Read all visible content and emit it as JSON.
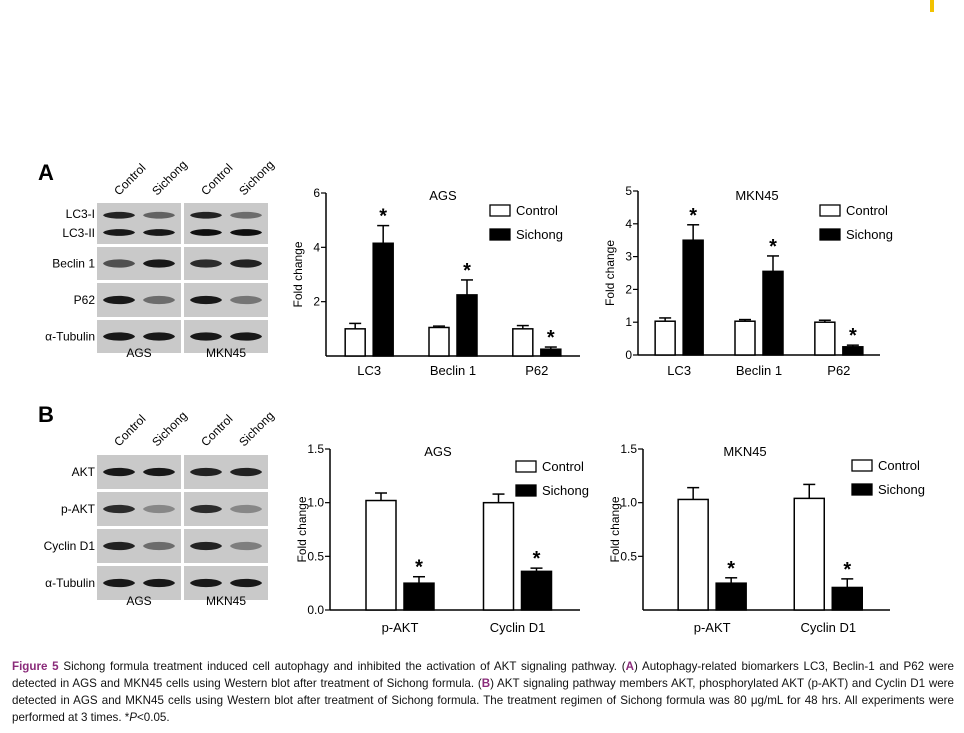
{
  "panel_a_letter": "A",
  "panel_b_letter": "B",
  "blots": {
    "A": {
      "lanes": [
        "Control",
        "Sichong",
        "Control",
        "Sichong"
      ],
      "rows": [
        {
          "label": "LC3-I",
          "label2": "LC3-II"
        },
        {
          "label": "Beclin 1"
        },
        {
          "label": "P62"
        },
        {
          "label": "α-Tubulin"
        }
      ],
      "cells": [
        "AGS",
        "MKN45"
      ]
    },
    "B": {
      "lanes": [
        "Control",
        "Sichong",
        "Control",
        "Sichong"
      ],
      "rows": [
        {
          "label": "AKT"
        },
        {
          "label": "p-AKT"
        },
        {
          "label": "Cyclin D1"
        },
        {
          "label": "α-Tubulin"
        }
      ],
      "cells": [
        "AGS",
        "MKN45"
      ]
    }
  },
  "chart_data": [
    {
      "type": "bar",
      "title": "AGS",
      "ylabel": "Fold change",
      "xlabel": "",
      "categories": [
        "LC3",
        "Beclin 1",
        "P62"
      ],
      "ylim": [
        0,
        6
      ],
      "yticks": [
        2,
        4,
        6
      ],
      "series": [
        {
          "name": "Control",
          "values": [
            1.0,
            1.05,
            1.0
          ],
          "errors": [
            0.2,
            0.05,
            0.12
          ],
          "color": "#ffffff"
        },
        {
          "name": "Sichong",
          "values": [
            4.15,
            2.25,
            0.25
          ],
          "errors": [
            0.65,
            0.55,
            0.08
          ],
          "color": "#000000"
        }
      ],
      "significance": [
        "*",
        "*",
        "*"
      ],
      "legend": "top-right"
    },
    {
      "type": "bar",
      "title": "MKN45",
      "ylabel": "Fold change",
      "xlabel": "",
      "categories": [
        "LC3",
        "Beclin 1",
        "P62"
      ],
      "ylim": [
        0,
        5
      ],
      "yticks": [
        0,
        1,
        2,
        3,
        4,
        5
      ],
      "series": [
        {
          "name": "Control",
          "values": [
            1.03,
            1.03,
            1.0
          ],
          "errors": [
            0.1,
            0.05,
            0.06
          ],
          "color": "#ffffff"
        },
        {
          "name": "Sichong",
          "values": [
            3.5,
            2.55,
            0.25
          ],
          "errors": [
            0.47,
            0.47,
            0.05
          ],
          "color": "#000000"
        }
      ],
      "significance": [
        "*",
        "*",
        "*"
      ],
      "legend": "top-right"
    },
    {
      "type": "bar",
      "title": "AGS",
      "ylabel": "Fold change",
      "xlabel": "",
      "categories": [
        "p-AKT",
        "Cyclin D1"
      ],
      "ylim": [
        0,
        1.5
      ],
      "yticks": [
        0.0,
        0.5,
        1.0,
        1.5
      ],
      "series": [
        {
          "name": "Control",
          "values": [
            1.02,
            1.0
          ],
          "errors": [
            0.07,
            0.08
          ],
          "color": "#ffffff"
        },
        {
          "name": "Sichong",
          "values": [
            0.25,
            0.36
          ],
          "errors": [
            0.06,
            0.03
          ],
          "color": "#000000"
        }
      ],
      "significance": [
        "*",
        "*"
      ],
      "legend": "top-right"
    },
    {
      "type": "bar",
      "title": "MKN45",
      "ylabel": "Fold change",
      "xlabel": "",
      "categories": [
        "p-AKT",
        "Cyclin D1"
      ],
      "ylim": [
        0,
        1.5
      ],
      "yticks": [
        0.5,
        1.0,
        1.5
      ],
      "series": [
        {
          "name": "Control",
          "values": [
            1.03,
            1.04
          ],
          "errors": [
            0.11,
            0.13
          ],
          "color": "#ffffff"
        },
        {
          "name": "Sichong",
          "values": [
            0.25,
            0.21
          ],
          "errors": [
            0.05,
            0.08
          ],
          "color": "#000000"
        }
      ],
      "significance": [
        "*",
        "*"
      ],
      "legend": "top-right"
    }
  ],
  "caption": {
    "label": "Figure 5",
    "text_1": " Sichong formula treatment induced cell autophagy and inhibited the activation of AKT signaling pathway. (",
    "ref_a": "A",
    "text_2": ") Autophagy-related biomarkers LC3, Beclin-1 and P62 were detected in AGS and MKN45 cells using Western blot after treatment of Sichong formula. (",
    "ref_b": "B",
    "text_3": ") AKT signaling pathway members AKT, phosphorylated AKT (p-AKT) and Cyclin D1 were detected in AGS and MKN45 cells using Western blot after treatment of Sichong formula. The treatment regimen of Sichong formula was 80 μg/mL for 48 hrs. All experiments were performed at 3 times. *",
    "p_symbol": "P",
    "text_4": "<0.05."
  }
}
